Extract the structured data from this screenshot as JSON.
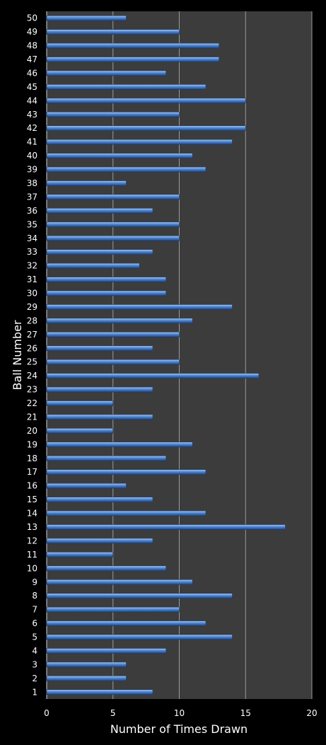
{
  "chart_data": {
    "type": "bar",
    "orientation": "horizontal",
    "title": "",
    "xlabel": "Number of Times Drawn",
    "ylabel": "Ball Number",
    "xlim": [
      0,
      20
    ],
    "xticks": [
      "0",
      "5",
      "10",
      "15",
      "20"
    ],
    "grid": "vertical",
    "legend": "none",
    "colors": {
      "background": "#000000",
      "plot_area": "#3c3c3c",
      "bar": "#4f86d0",
      "grid": "#9a9a9a",
      "text": "#ffffff"
    },
    "categories": [
      "1",
      "2",
      "3",
      "4",
      "5",
      "6",
      "7",
      "8",
      "9",
      "10",
      "11",
      "12",
      "13",
      "14",
      "15",
      "16",
      "17",
      "18",
      "19",
      "20",
      "21",
      "22",
      "23",
      "24",
      "25",
      "26",
      "27",
      "28",
      "29",
      "30",
      "31",
      "32",
      "33",
      "34",
      "35",
      "36",
      "37",
      "38",
      "39",
      "40",
      "41",
      "42",
      "43",
      "44",
      "45",
      "46",
      "47",
      "48",
      "49",
      "50"
    ],
    "values": [
      8,
      6,
      6,
      9,
      14,
      12,
      10,
      14,
      11,
      9,
      5,
      8,
      18,
      12,
      8,
      6,
      12,
      9,
      11,
      5,
      8,
      5,
      8,
      16,
      10,
      8,
      10,
      11,
      14,
      9,
      9,
      7,
      8,
      10,
      10,
      8,
      10,
      6,
      12,
      11,
      14,
      15,
      10,
      15,
      12,
      9,
      13,
      13,
      10,
      6
    ]
  }
}
